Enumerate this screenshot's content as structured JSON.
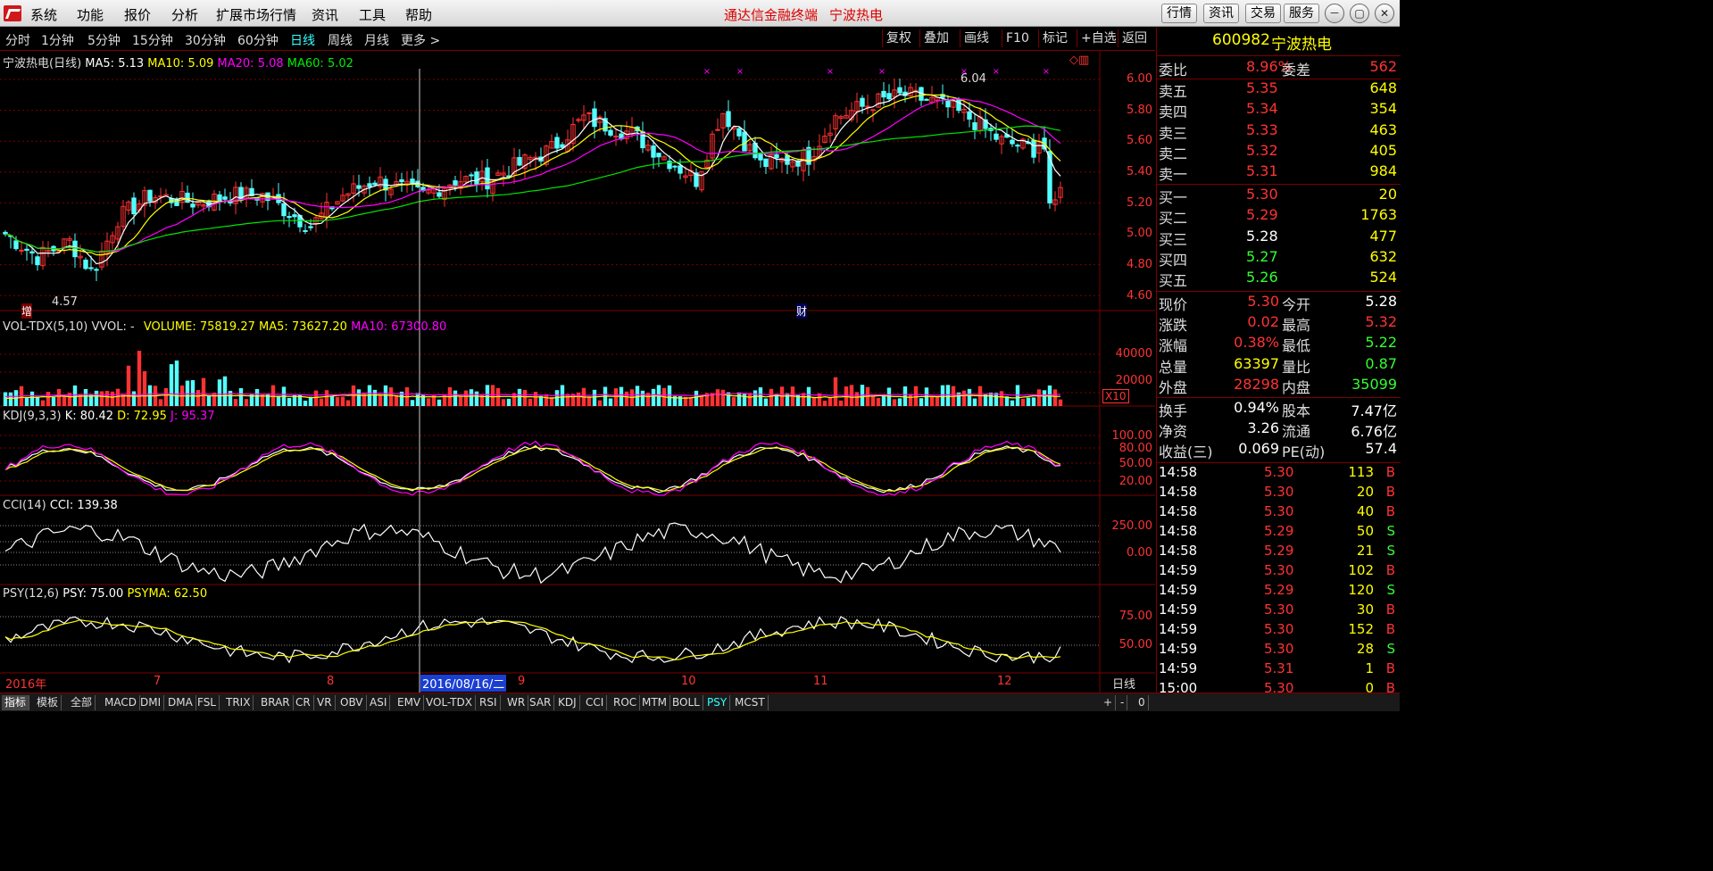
{
  "app": {
    "menus": [
      "系统",
      "功能",
      "报价",
      "分析",
      "扩展市场行情",
      "资讯",
      "工具",
      "帮助"
    ],
    "title": "通达信金融终端",
    "stock_title": "宁波热电",
    "top_buttons": [
      "行情",
      "资讯",
      "交易",
      "服务"
    ],
    "window_controls": [
      "－",
      "▢",
      "✕"
    ]
  },
  "periods": [
    "分时",
    "1分钟",
    "5分钟",
    "15分钟",
    "30分钟",
    "60分钟",
    "日线",
    "周线",
    "月线",
    "更多 >"
  ],
  "active_period": "日线",
  "tools": [
    "复权",
    "叠加",
    "画线",
    "F10",
    "标记",
    "+自选",
    "返回"
  ],
  "main_panel": {
    "name": "宁波热电(日线)",
    "ma5": "MA5: 5.13",
    "ma10": "MA10: 5.09",
    "ma20": "MA20: 5.08",
    "ma60": "MA60: 5.02",
    "y_ticks": [
      "6.00",
      "5.80",
      "5.60",
      "5.40",
      "5.20",
      "5.00",
      "4.80",
      "4.60"
    ],
    "high_label": "6.04",
    "low_label": "4.57",
    "mark_zeng": "增",
    "mark_cai": "财"
  },
  "vol_panel": {
    "name": "VOL-TDX(5,10)",
    "vvol": "VVOL: -",
    "volume": "VOLUME: 75819.27",
    "ma5": "MA5: 73627.20",
    "ma10": "MA10: 67300.80",
    "y_ticks": [
      "40000",
      "20000"
    ],
    "unit": "X10"
  },
  "kdj_panel": {
    "name": "KDJ(9,3,3)",
    "k": "K: 80.42",
    "d": "D: 72.95",
    "j": "J: 95.37",
    "y_ticks": [
      "100.00",
      "80.00",
      "50.00",
      "20.00"
    ]
  },
  "cci_panel": {
    "name": "CCI(14)",
    "cci": "CCI: 139.38",
    "y_ticks": [
      "250.00",
      "0.00"
    ]
  },
  "psy_panel": {
    "name": "PSY(12,6)",
    "psy": "PSY: 75.00",
    "psyma": "PSYMA: 62.50",
    "y_ticks": [
      "75.00",
      "50.00"
    ]
  },
  "x_axis": {
    "labels": [
      "2016年",
      "7",
      "8",
      "9",
      "10",
      "11",
      "12"
    ],
    "cursor_date": "2016/08/16/二",
    "period_label": "日线"
  },
  "bottom_tabs": [
    "指标",
    "模板",
    "全部",
    "MACD",
    "DMI",
    "DMA",
    "FSL",
    "TRIX",
    "BRAR",
    "CR",
    "VR",
    "OBV",
    "ASI",
    "EMV",
    "VOL-TDX",
    "RSI",
    "WR",
    "SAR",
    "KDJ",
    "CCI",
    "ROC",
    "MTM",
    "BOLL",
    "PSY",
    "MCST"
  ],
  "bottom_right": [
    "+",
    "-",
    "0"
  ],
  "quote": {
    "code": "600982",
    "name": "宁波热电",
    "weibi_label": "委比",
    "weibi": "8.96%",
    "weicha_label": "委差",
    "weicha": "562",
    "asks": [
      {
        "label": "卖五",
        "price": "5.35",
        "vol": "648"
      },
      {
        "label": "卖四",
        "price": "5.34",
        "vol": "354"
      },
      {
        "label": "卖三",
        "price": "5.33",
        "vol": "463"
      },
      {
        "label": "卖二",
        "price": "5.32",
        "vol": "405"
      },
      {
        "label": "卖一",
        "price": "5.31",
        "vol": "984"
      }
    ],
    "bids": [
      {
        "label": "买一",
        "price": "5.30",
        "vol": "20"
      },
      {
        "label": "买二",
        "price": "5.29",
        "vol": "1763"
      },
      {
        "label": "买三",
        "price": "5.28",
        "vol": "477"
      },
      {
        "label": "买四",
        "price": "5.27",
        "vol": "632"
      },
      {
        "label": "买五",
        "price": "5.26",
        "vol": "524"
      }
    ],
    "stats": [
      {
        "l1": "现价",
        "v1": "5.30",
        "l2": "今开",
        "v2": "5.28"
      },
      {
        "l1": "涨跌",
        "v1": "0.02",
        "l2": "最高",
        "v2": "5.32"
      },
      {
        "l1": "涨幅",
        "v1": "0.38%",
        "l2": "最低",
        "v2": "5.22"
      },
      {
        "l1": "总量",
        "v1": "63397",
        "l2": "量比",
        "v2": "0.87"
      },
      {
        "l1": "外盘",
        "v1": "28298",
        "l2": "内盘",
        "v2": "35099"
      }
    ],
    "stats2": [
      {
        "l1": "换手",
        "v1": "0.94%",
        "l2": "股本",
        "v2": "7.47亿"
      },
      {
        "l1": "净资",
        "v1": "3.26",
        "l2": "流通",
        "v2": "6.76亿"
      },
      {
        "l1": "收益(三)",
        "v1": "0.069",
        "l2": "PE(动)",
        "v2": "57.4"
      }
    ],
    "ticks": [
      {
        "t": "14:58",
        "p": "5.30",
        "v": "113",
        "s": "B"
      },
      {
        "t": "14:58",
        "p": "5.30",
        "v": "20",
        "s": "B"
      },
      {
        "t": "14:58",
        "p": "5.30",
        "v": "40",
        "s": "B"
      },
      {
        "t": "14:58",
        "p": "5.29",
        "v": "50",
        "s": "S"
      },
      {
        "t": "14:58",
        "p": "5.29",
        "v": "21",
        "s": "S"
      },
      {
        "t": "14:59",
        "p": "5.30",
        "v": "102",
        "s": "B"
      },
      {
        "t": "14:59",
        "p": "5.29",
        "v": "120",
        "s": "S"
      },
      {
        "t": "14:59",
        "p": "5.30",
        "v": "30",
        "s": "B"
      },
      {
        "t": "14:59",
        "p": "5.30",
        "v": "152",
        "s": "B"
      },
      {
        "t": "14:59",
        "p": "5.30",
        "v": "28",
        "s": "S"
      },
      {
        "t": "14:59",
        "p": "5.31",
        "v": "1",
        "s": "B"
      },
      {
        "t": "15:00",
        "p": "5.30",
        "v": "0",
        "s": "B"
      }
    ]
  },
  "colors": {
    "up": "#ff3232",
    "down": "#54ffff",
    "ma5": "#ffffff",
    "ma10": "#ffff00",
    "ma20": "#ff00ff",
    "ma60": "#00e600",
    "grid": "#7a0000"
  }
}
